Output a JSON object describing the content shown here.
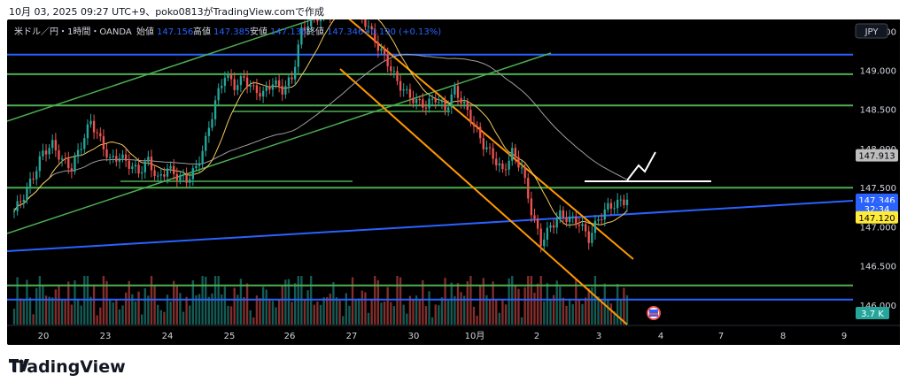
{
  "caption": "10月 03, 2025 09:27 UTC+9、poko0813がTradingView.comで作成",
  "legend": {
    "symbol": "米ドル／円・1時間・OANDA",
    "open_label": "始値",
    "open": "147.156",
    "high_label": "高値",
    "high": "147.385",
    "low_label": "安値",
    "low": "147.136",
    "close_label": "終値",
    "close": "147.346",
    "change": "+0.190 (+0.13%)"
  },
  "currency_button": "JPY",
  "brand": "TradingView",
  "colors": {
    "background": "#000000",
    "up": "#26a69a",
    "down": "#ef5350",
    "green_line": "#4caf50",
    "blue_line": "#2962ff",
    "orange_channel": "#ff9800",
    "ma_short": "#f2c95c",
    "ma_long": "#9e9e9e"
  },
  "chart_data": {
    "type": "candlestick",
    "symbol": "USDJPY",
    "timeframe": "1h",
    "x_tick_labels": [
      "20",
      "23",
      "24",
      "25",
      "26",
      "27",
      "30",
      "10月",
      "2",
      "3",
      "4",
      "7",
      "8",
      "9"
    ],
    "y_tick_labels": [
      "146.000",
      "146.500",
      "147.000",
      "147.500",
      "148.000",
      "148.500",
      "149.000",
      "149.500"
    ],
    "ylim": [
      145.75,
      149.65
    ],
    "price_labels": [
      {
        "value": 147.913,
        "text": "147.913",
        "style": "grey"
      },
      {
        "value": 147.346,
        "text": "147.346",
        "style": "blue"
      },
      {
        "value": 147.23,
        "text": "32:34",
        "style": "blue"
      },
      {
        "value": 147.12,
        "text": "147.120",
        "style": "yellow"
      }
    ],
    "volume_label": "3.7 K",
    "horizontal_levels": [
      {
        "value": 149.2,
        "color": "blue"
      },
      {
        "value": 148.95,
        "color": "green"
      },
      {
        "value": 148.55,
        "color": "green"
      },
      {
        "value": 147.5,
        "color": "green"
      },
      {
        "value": 146.25,
        "color": "green"
      },
      {
        "value": 146.07,
        "color": "blue"
      }
    ],
    "closes_per_day": [
      {
        "day": "19",
        "closes": [
          147.2,
          147.4,
          147.65,
          147.95,
          148.05,
          147.85
        ]
      },
      {
        "day": "20",
        "closes": [
          147.75,
          148.05,
          148.35,
          148.1,
          147.85,
          147.9
        ]
      },
      {
        "day": "23",
        "closes": [
          147.8,
          147.7,
          147.85,
          147.6,
          147.75,
          147.65
        ]
      },
      {
        "day": "24",
        "closes": [
          147.6,
          147.75,
          148.1,
          148.6,
          148.95,
          148.8
        ]
      },
      {
        "day": "25",
        "closes": [
          148.9,
          148.75,
          148.7,
          148.85,
          148.75,
          148.9
        ]
      },
      {
        "day": "26",
        "closes": [
          149.5,
          149.65,
          149.7,
          149.75,
          149.8,
          149.85
        ]
      },
      {
        "day": "29",
        "closes": [
          149.75,
          149.55,
          149.3,
          149.1,
          148.85,
          148.7
        ]
      },
      {
        "day": "30",
        "closes": [
          148.6,
          148.55,
          148.65,
          148.5,
          148.75,
          148.55
        ]
      },
      {
        "day": "1",
        "closes": [
          148.3,
          148.05,
          147.9,
          147.7,
          147.95,
          147.75
        ]
      },
      {
        "day": "2",
        "closes": [
          147.2,
          146.8,
          147.0,
          147.15,
          147.1,
          147.05
        ]
      },
      {
        "day": "3",
        "closes": [
          146.85,
          147.1,
          147.25,
          147.3,
          147.346
        ]
      }
    ]
  }
}
